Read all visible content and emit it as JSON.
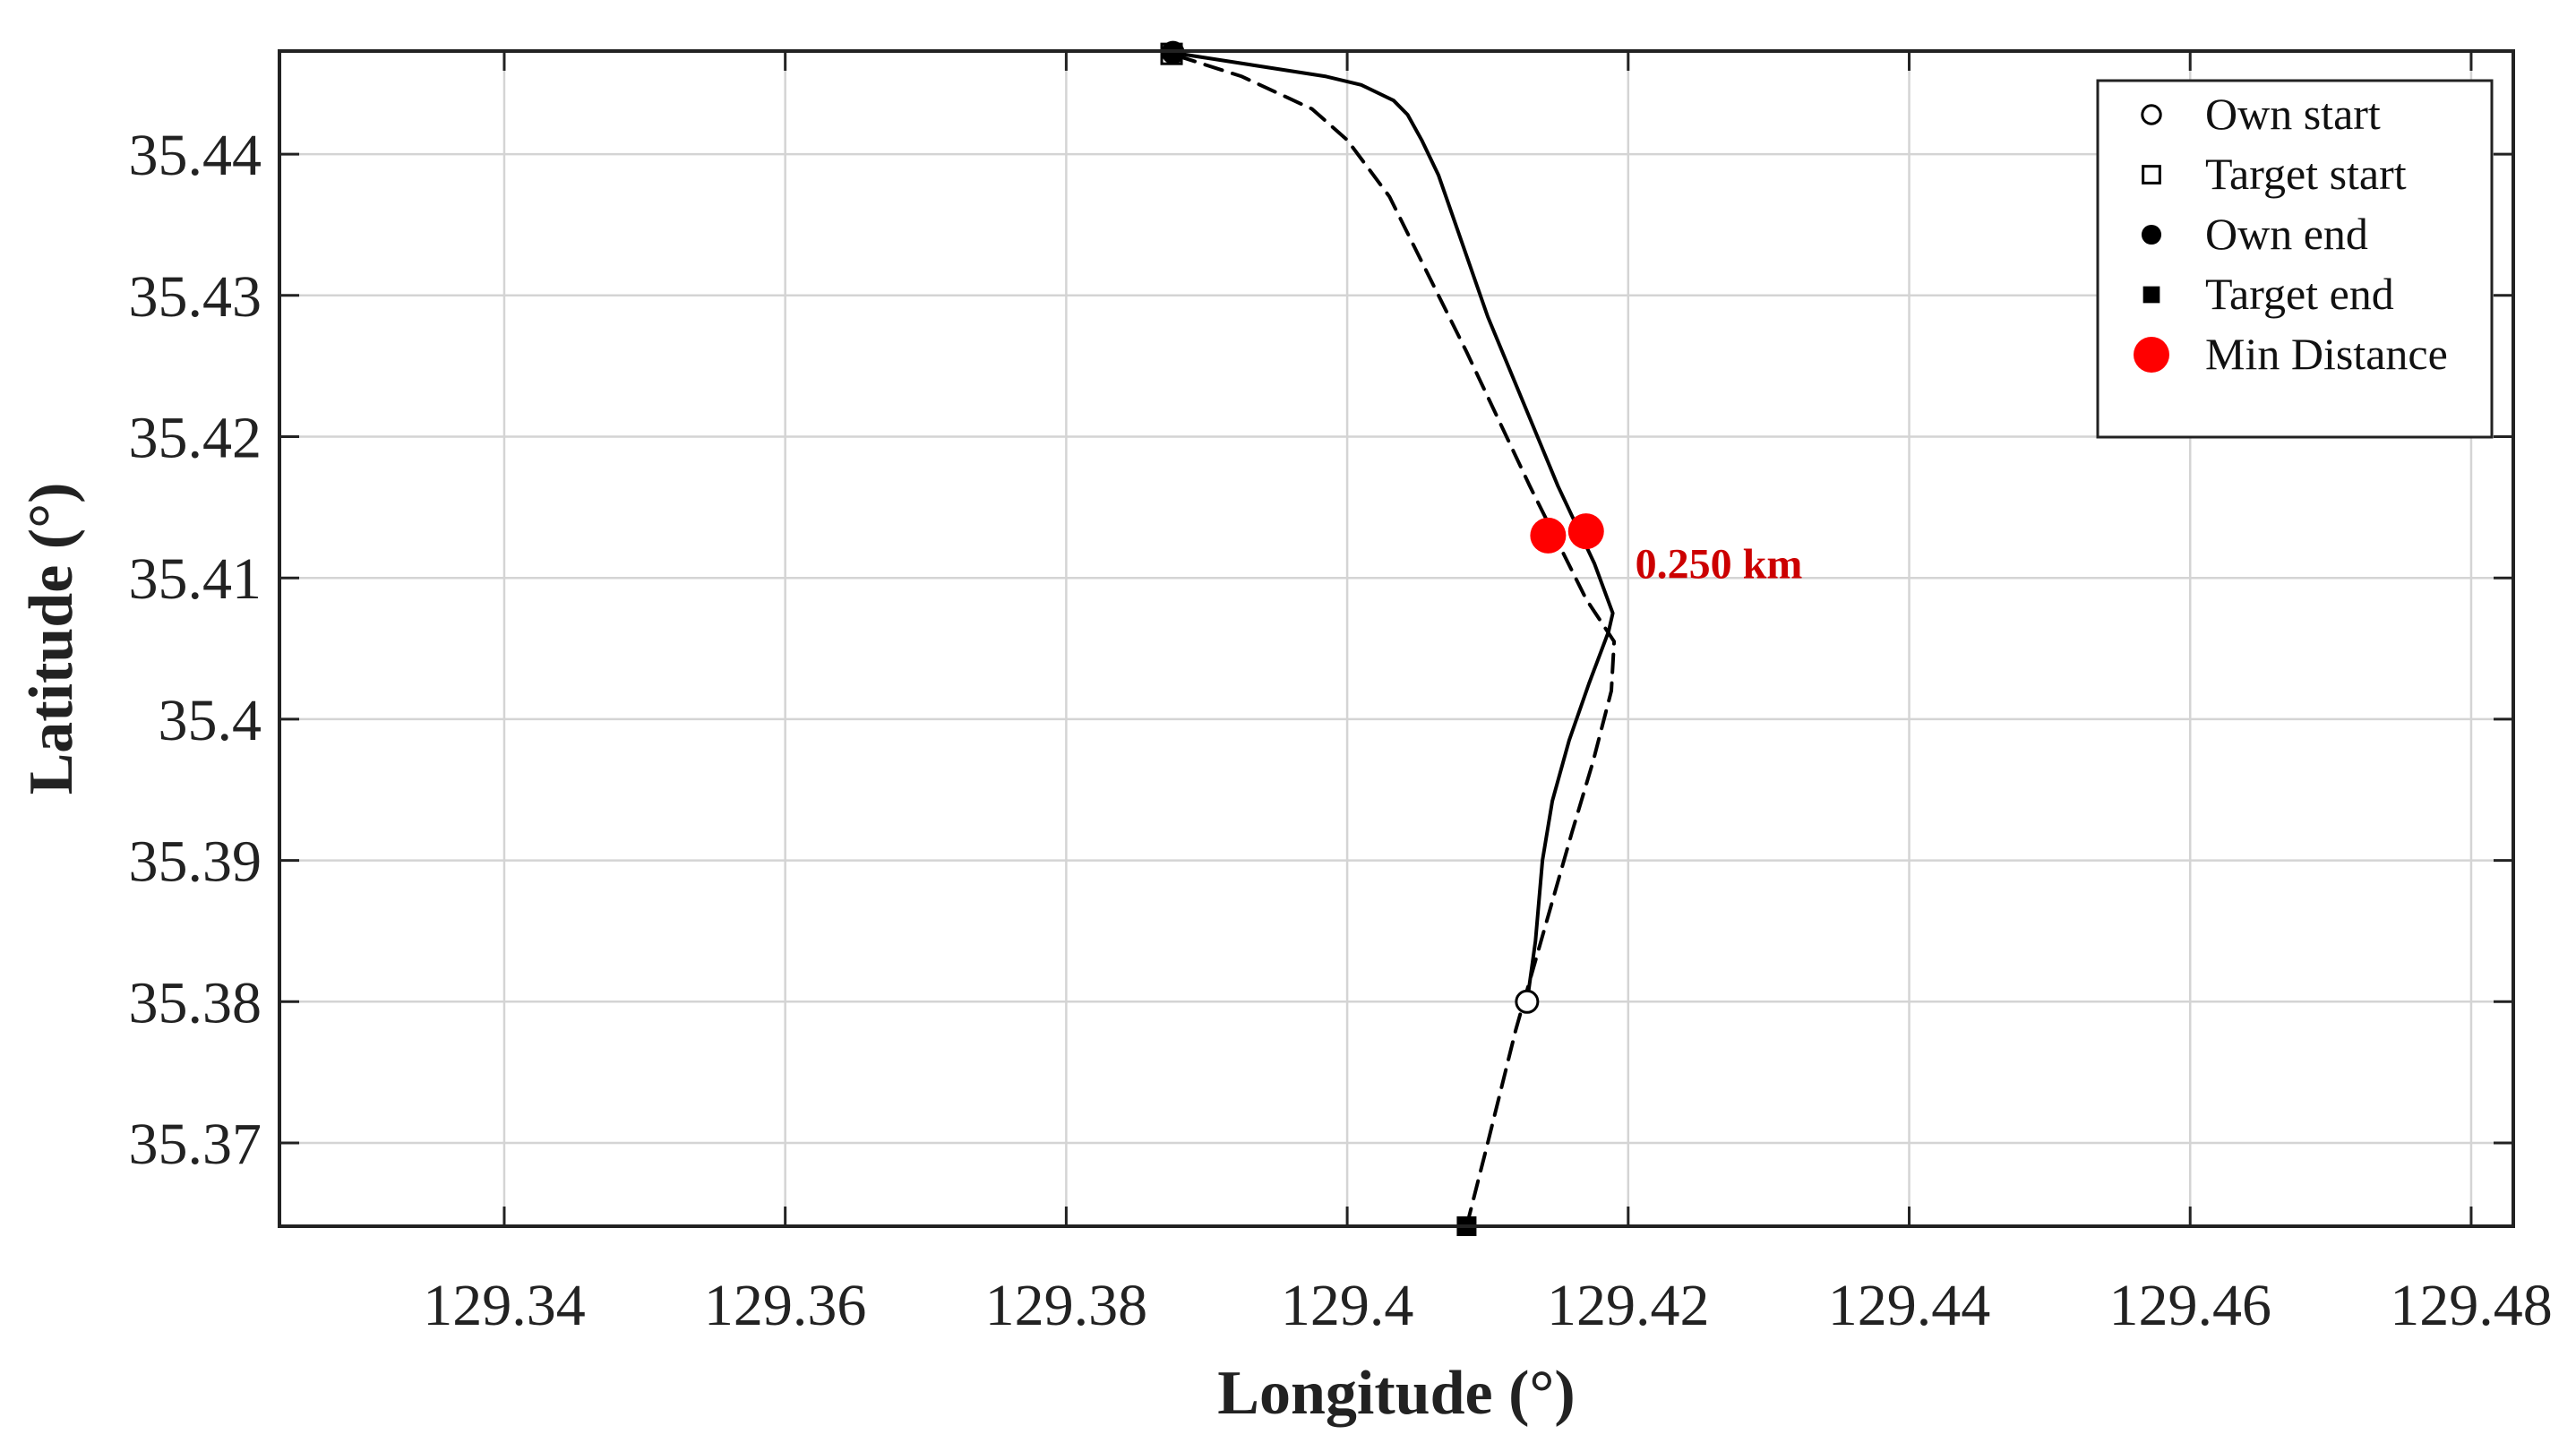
{
  "chart_data": {
    "type": "line",
    "xlabel": "Longitude (°)",
    "ylabel": "Latitude (°)",
    "xlim": [
      129.324,
      129.483
    ],
    "ylim": [
      35.3641,
      35.4473
    ],
    "xticks": [
      129.34,
      129.36,
      129.38,
      129.4,
      129.42,
      129.44,
      129.46,
      129.48
    ],
    "xtick_labels": [
      "129.34",
      "129.36",
      "129.38",
      "129.4",
      "129.42",
      "129.44",
      "129.46",
      "129.48"
    ],
    "yticks": [
      35.37,
      35.38,
      35.39,
      35.4,
      35.41,
      35.42,
      35.43,
      35.44
    ],
    "ytick_labels": [
      "35.37",
      "35.38",
      "35.39",
      "35.4",
      "35.41",
      "35.42",
      "35.43",
      "35.44"
    ],
    "grid": true,
    "legend_position": "top-right",
    "series": [
      {
        "style": "solid",
        "color": "#000000",
        "x": [
          129.4128,
          129.4134,
          129.4139,
          129.4146,
          129.4158,
          129.4172,
          129.4186,
          129.4189,
          129.4176,
          129.415,
          129.41,
          129.4065,
          129.4053,
          129.4043,
          129.4033,
          129.401,
          129.3985,
          129.3875
        ],
        "y": [
          35.38,
          35.3843,
          35.39,
          35.3942,
          35.3985,
          35.4025,
          35.4062,
          35.4075,
          35.411,
          35.4165,
          35.4285,
          35.4385,
          35.441,
          35.4428,
          35.4438,
          35.4449,
          35.4455,
          35.4472
        ]
      },
      {
        "style": "dashed",
        "color": "#000000",
        "x": [
          129.4085,
          129.41,
          129.412,
          129.414,
          129.416,
          129.4175,
          129.4188,
          129.419,
          129.417,
          129.413,
          129.4085,
          129.405,
          129.403,
          129.4,
          129.3975,
          129.3925,
          129.3875
        ],
        "y": [
          35.3641,
          35.37,
          35.378,
          35.385,
          35.392,
          35.397,
          35.402,
          35.4055,
          35.4085,
          35.4165,
          35.426,
          35.433,
          35.437,
          35.441,
          35.4432,
          35.4455,
          35.4471
        ]
      }
    ],
    "markers": [
      {
        "name": "Own start",
        "symbol": "circle-open",
        "x": 129.4128,
        "y": 35.38,
        "color": "#000000"
      },
      {
        "name": "Target start",
        "symbol": "square-open",
        "x": 129.3875,
        "y": 35.4471,
        "color": "#000000"
      },
      {
        "name": "Own end",
        "symbol": "circle-filled",
        "x": 129.3876,
        "y": 35.4472,
        "color": "#000000"
      },
      {
        "name": "Target end",
        "symbol": "square-filled",
        "x": 129.4085,
        "y": 35.3641,
        "color": "#000000"
      }
    ],
    "min_distance_points": [
      {
        "x": 129.4143,
        "y": 35.413
      },
      {
        "x": 129.417,
        "y": 35.4133
      }
    ],
    "min_distance_color": "#ff0000",
    "legend": [
      "Own start",
      "Target start",
      "Own end",
      "Target end",
      "Min Distance"
    ],
    "annotation": {
      "text": "0.250 km",
      "x": 129.4205,
      "y": 35.411,
      "color": "#cc0000"
    }
  }
}
